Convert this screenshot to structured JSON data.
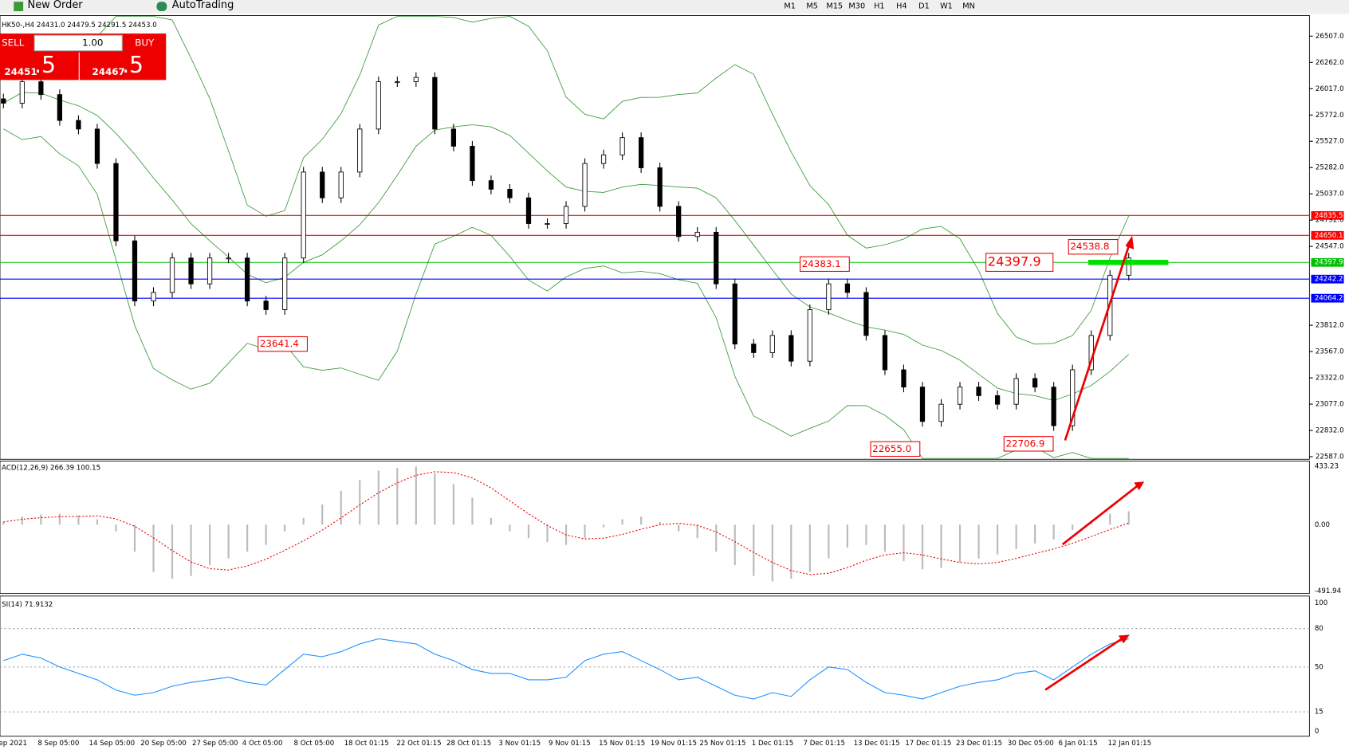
{
  "toolbar": {
    "new_order": "New Order",
    "auto_trading": "AutoTrading",
    "timeframes": [
      "M1",
      "M5",
      "M15",
      "M30",
      "H1",
      "H4",
      "D1",
      "W1",
      "MN"
    ]
  },
  "trade_panel": {
    "sell": "SELL",
    "lot": "1.00",
    "buy": "BUY",
    "bid_main": "24451",
    "bid_pip": ".5",
    "ask_main": "24467",
    "ask_pip": ".5"
  },
  "chart_header": "HK50-,H4  24431.0 24479.5 24291.5 24453.0",
  "price_axis": [
    {
      "value": 26507,
      "label": "26507.0"
    },
    {
      "value": 26262,
      "label": "26262.0"
    },
    {
      "value": 26017,
      "label": "26017.0"
    },
    {
      "value": 25772,
      "label": "25772.0"
    },
    {
      "value": 25527,
      "label": "25527.0"
    },
    {
      "value": 25282,
      "label": "25282.0"
    },
    {
      "value": 25037,
      "label": "25037.0"
    },
    {
      "value": 24792,
      "label": "24792.0"
    },
    {
      "value": 24547,
      "label": "24547.0"
    },
    {
      "value": 23812,
      "label": "23812.0"
    },
    {
      "value": 23567,
      "label": "23567.0"
    },
    {
      "value": 23322,
      "label": "23322.0"
    },
    {
      "value": 23077,
      "label": "23077.0"
    },
    {
      "value": 22832,
      "label": "22832.0"
    },
    {
      "value": 22587,
      "label": "22587.0"
    }
  ],
  "levels": [
    {
      "value": 24835.5,
      "color": "#ff0000"
    },
    {
      "value": 24650.1,
      "color": "#ff0000"
    },
    {
      "value": 24397.9,
      "color": "#00c000"
    },
    {
      "value": 24242.2,
      "color": "#0000ff"
    },
    {
      "value": 24064.2,
      "color": "#0000ff"
    }
  ],
  "annotations": [
    "23641.4",
    "24383.1",
    "24397.9",
    "24538.8",
    "22655.0",
    "22706.9"
  ],
  "closes": [
    25882,
    26082,
    25962,
    25721,
    25641,
    25320,
    24599,
    24038,
    24118,
    24439,
    24198,
    24439,
    24439,
    24038,
    23958,
    24439,
    25240,
    25000,
    25240,
    25641,
    26082,
    26082,
    26122,
    25641,
    25481,
    25160,
    25080,
    25000,
    24760,
    24760,
    24920,
    25320,
    25400,
    25561,
    25280,
    24920,
    24639,
    24679,
    24198,
    23637,
    23557,
    23717,
    23477,
    23958,
    24198,
    24118,
    23717,
    23397,
    23236,
    22916,
    23076,
    23236,
    23156,
    23076,
    23316,
    23236,
    22876,
    23397,
    23717,
    24278,
    24439
  ],
  "macd": {
    "label": "ACD(12,26,9) 266.39 100.15",
    "axis": [
      {
        "value": 433.23,
        "label": "433.23"
      },
      {
        "value": 0,
        "label": "0.00"
      },
      {
        "value": -491.94,
        "label": "-491.94"
      }
    ],
    "values": [
      20,
      60,
      75,
      80,
      70,
      40,
      -50,
      -200,
      -350,
      -400,
      -380,
      -300,
      -250,
      -200,
      -150,
      -50,
      50,
      150,
      250,
      330,
      400,
      420,
      430,
      380,
      300,
      200,
      50,
      -50,
      -100,
      -130,
      -150,
      -100,
      -20,
      40,
      60,
      20,
      -50,
      -100,
      -200,
      -300,
      -380,
      -420,
      -400,
      -350,
      -250,
      -170,
      -150,
      -200,
      -270,
      -330,
      -320,
      -280,
      -250,
      -220,
      -180,
      -140,
      -110,
      -40,
      30,
      80,
      100
    ]
  },
  "rsi": {
    "label": "SI(14) 71.9132",
    "axis": [
      100,
      80,
      50,
      15,
      0
    ],
    "values": [
      55,
      60,
      57,
      50,
      45,
      40,
      32,
      28,
      30,
      35,
      38,
      40,
      42,
      38,
      36,
      48,
      60,
      58,
      62,
      68,
      72,
      70,
      68,
      60,
      55,
      48,
      45,
      45,
      40,
      40,
      42,
      55,
      60,
      62,
      55,
      48,
      40,
      42,
      35,
      28,
      25,
      30,
      27,
      40,
      50,
      48,
      38,
      30,
      28,
      25,
      30,
      35,
      38,
      40,
      45,
      47,
      40,
      50,
      60,
      68,
      72
    ]
  },
  "time_axis": [
    "ep 2021",
    "8 Sep 05:00",
    "14 Sep 05:00",
    "20 Sep 05:00",
    "27 Sep 05:00",
    "4 Oct 05:00",
    "8 Oct 05:00",
    "18 Oct 01:15",
    "22 Oct 01:15",
    "28 Oct 01:15",
    "3 Nov 01:15",
    "9 Nov 01:15",
    "15 Nov 01:15",
    "19 Nov 01:15",
    "25 Nov 01:15",
    "1 Dec 01:15",
    "7 Dec 01:15",
    "13 Dec 01:15",
    "17 Dec 01:15",
    "23 Dec 01:15",
    "30 Dec 05:00",
    "6 Jan 01:15",
    "12 Jan 01:15"
  ]
}
